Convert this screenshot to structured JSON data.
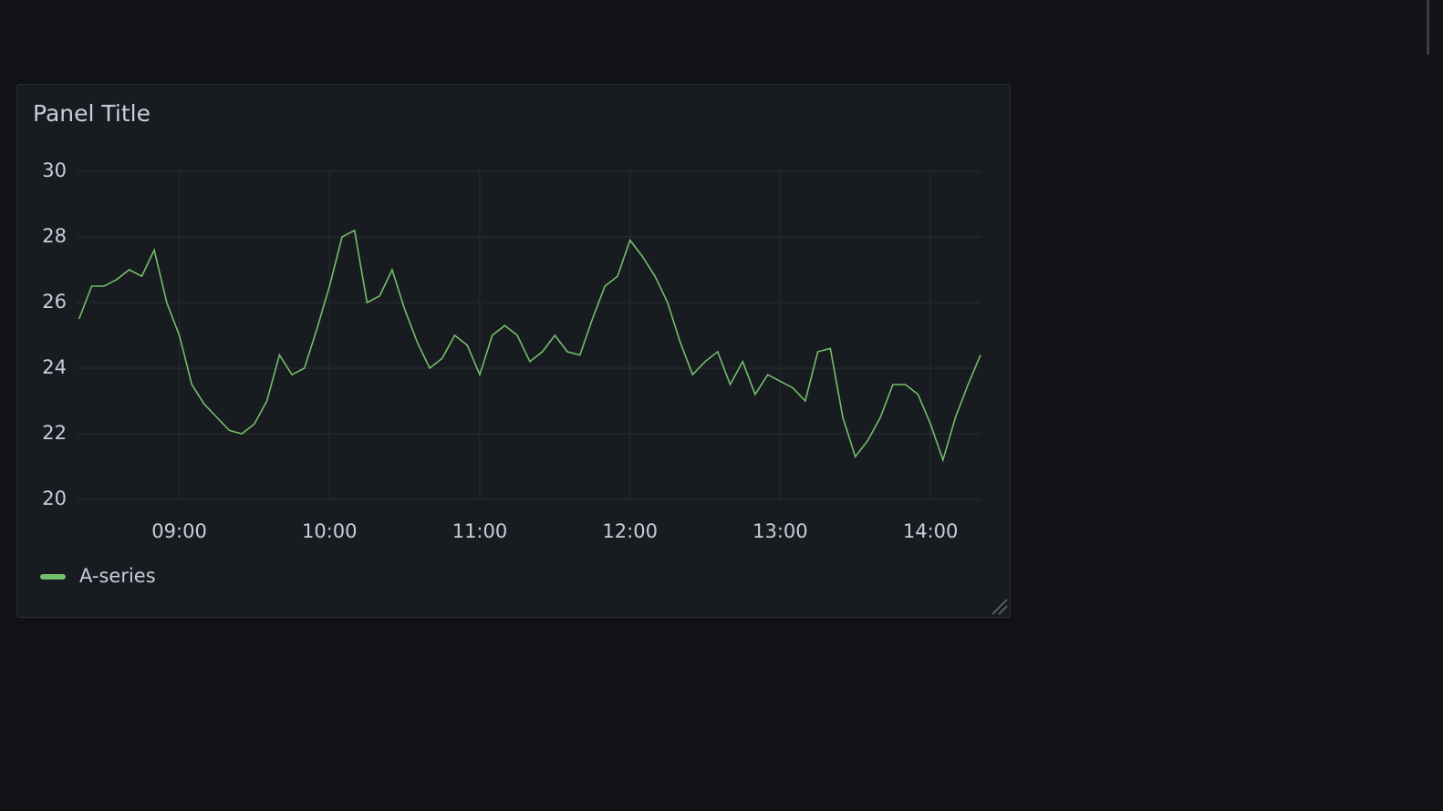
{
  "chart_data": {
    "type": "line",
    "title": "Panel Title",
    "x": [
      "08:20",
      "08:25",
      "08:30",
      "08:35",
      "08:40",
      "08:45",
      "08:50",
      "08:55",
      "09:00",
      "09:05",
      "09:10",
      "09:15",
      "09:20",
      "09:25",
      "09:30",
      "09:35",
      "09:40",
      "09:45",
      "09:50",
      "09:55",
      "10:00",
      "10:05",
      "10:10",
      "10:15",
      "10:20",
      "10:25",
      "10:30",
      "10:35",
      "10:40",
      "10:45",
      "10:50",
      "10:55",
      "11:00",
      "11:05",
      "11:10",
      "11:15",
      "11:20",
      "11:25",
      "11:30",
      "11:35",
      "11:40",
      "11:45",
      "11:50",
      "11:55",
      "12:00",
      "12:05",
      "12:10",
      "12:15",
      "12:20",
      "12:25",
      "12:30",
      "12:35",
      "12:40",
      "12:45",
      "12:50",
      "12:55",
      "13:00",
      "13:05",
      "13:10",
      "13:15",
      "13:20",
      "13:25",
      "13:30",
      "13:35",
      "13:40",
      "13:45",
      "13:50",
      "13:55",
      "14:00",
      "14:05",
      "14:10",
      "14:15",
      "14:20"
    ],
    "series": [
      {
        "name": "A-series",
        "color": "#73bf69",
        "values": [
          25.5,
          26.5,
          26.5,
          26.7,
          27.0,
          26.8,
          27.6,
          26.0,
          25.0,
          23.5,
          22.9,
          22.5,
          22.1,
          22.0,
          22.3,
          23.0,
          24.4,
          23.8,
          24.0,
          25.2,
          26.5,
          28.0,
          28.2,
          26.0,
          26.2,
          27.0,
          25.8,
          24.8,
          24.0,
          24.3,
          25.0,
          24.7,
          23.8,
          25.0,
          25.3,
          25.0,
          24.2,
          24.5,
          25.0,
          24.5,
          24.4,
          25.5,
          26.5,
          26.8,
          27.9,
          27.4,
          26.8,
          26.0,
          24.8,
          23.8,
          24.2,
          24.5,
          23.5,
          24.2,
          23.2,
          23.8,
          23.6,
          23.4,
          23.0,
          24.5,
          24.6,
          22.5,
          21.3,
          21.8,
          22.5,
          23.5,
          23.5,
          23.2,
          22.3,
          21.2,
          22.5,
          23.5,
          24.4
        ]
      }
    ],
    "xlim": [
      "08:19",
      "14:20"
    ],
    "xticks": [
      "09:00",
      "10:00",
      "11:00",
      "12:00",
      "13:00",
      "14:00"
    ],
    "ylim": [
      20,
      30
    ],
    "yticks": [
      20,
      22,
      24,
      26,
      28,
      30
    ],
    "grid": true,
    "legend": "bottom"
  }
}
